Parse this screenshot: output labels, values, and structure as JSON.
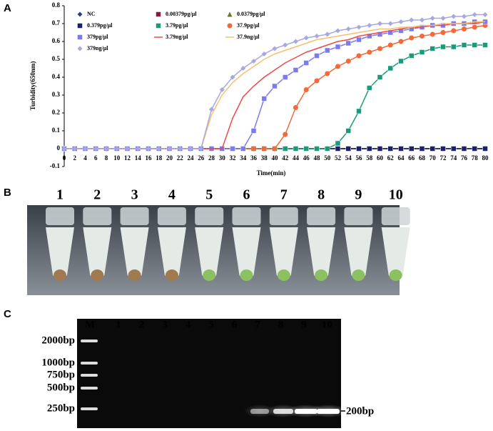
{
  "panels": [
    "A",
    "B",
    "C"
  ],
  "chart_data": {
    "type": "line",
    "x_label": "Time(min)",
    "y_label": "Turbidity(650nm)",
    "x": [
      0,
      2,
      4,
      6,
      8,
      10,
      12,
      14,
      16,
      18,
      20,
      22,
      24,
      26,
      28,
      30,
      32,
      34,
      36,
      38,
      40,
      42,
      44,
      46,
      48,
      50,
      52,
      54,
      56,
      58,
      60,
      62,
      64,
      66,
      68,
      70,
      72,
      74,
      76,
      78,
      80
    ],
    "xlim": [
      0,
      80
    ],
    "xticks": [
      0,
      2,
      4,
      6,
      8,
      10,
      12,
      14,
      16,
      18,
      20,
      22,
      24,
      26,
      28,
      30,
      32,
      34,
      36,
      38,
      40,
      42,
      44,
      46,
      48,
      50,
      52,
      54,
      56,
      58,
      60,
      62,
      64,
      66,
      68,
      70,
      72,
      74,
      76,
      78,
      80
    ],
    "ylim": [
      -0.1,
      0.8
    ],
    "yticks": [
      -0.1,
      0,
      0.1,
      0.2,
      0.3,
      0.4,
      0.5,
      0.6,
      0.7,
      0.8
    ],
    "series": [
      {
        "name": "NC",
        "color": "#2d3e8f",
        "marker": "diamond",
        "values": [
          0,
          0,
          0,
          0,
          0,
          0,
          0,
          0,
          0,
          0,
          0,
          0,
          0,
          0,
          0,
          0,
          0,
          0,
          0,
          0,
          0,
          0,
          0,
          0,
          0,
          0,
          0,
          0,
          0,
          0,
          0,
          0,
          0,
          0,
          0,
          0,
          0,
          0,
          0,
          0,
          0
        ]
      },
      {
        "name": "0.00379pg/µl",
        "color": "#8b1a3a",
        "marker": "square",
        "values": [
          0,
          0,
          0,
          0,
          0,
          0,
          0,
          0,
          0,
          0,
          0,
          0,
          0,
          0,
          0,
          0,
          0,
          0,
          0,
          0,
          0,
          0,
          0,
          0,
          0,
          0,
          0,
          0,
          0,
          0,
          0,
          0,
          0,
          0,
          0,
          0,
          0,
          0,
          0,
          0,
          0
        ]
      },
      {
        "name": "0.0379pg/µl",
        "color": "#6b7a2e",
        "marker": "triangle",
        "values": [
          0,
          0,
          0,
          0,
          0,
          0,
          0,
          0,
          0,
          0,
          0,
          0,
          0,
          0,
          0,
          0,
          0,
          0,
          0,
          0,
          0,
          0,
          0,
          0,
          0,
          0,
          0,
          0,
          0,
          0,
          0,
          0,
          0,
          0,
          0,
          0,
          0,
          0,
          0,
          0,
          0
        ]
      },
      {
        "name": "0.379pg/µl",
        "color": "#1c1f6b",
        "marker": "square",
        "values": [
          0,
          0,
          0,
          0,
          0,
          0,
          0,
          0,
          0,
          0,
          0,
          0,
          0,
          0,
          0,
          0,
          0,
          0,
          0,
          0,
          0,
          0,
          0,
          0,
          0,
          0,
          0,
          0,
          0,
          0,
          0,
          0,
          0,
          0,
          0,
          0,
          0,
          0,
          0,
          0,
          0
        ]
      },
      {
        "name": "3.79pg/µl",
        "color": "#1a9a7a",
        "marker": "square",
        "values": [
          0,
          0,
          0,
          0,
          0,
          0,
          0,
          0,
          0,
          0,
          0,
          0,
          0,
          0,
          0,
          0,
          0,
          0,
          0,
          0,
          0,
          0,
          0,
          0,
          0,
          0,
          0.03,
          0.1,
          0.21,
          0.34,
          0.4,
          0.45,
          0.49,
          0.52,
          0.54,
          0.56,
          0.57,
          0.57,
          0.58,
          0.58,
          0.58
        ]
      },
      {
        "name": "37.9pg/µl",
        "color": "#f26a3a",
        "marker": "circle",
        "values": [
          0,
          0,
          0,
          0,
          0,
          0,
          0,
          0,
          0,
          0,
          0,
          0,
          0,
          0,
          0,
          0,
          0,
          0,
          0,
          0,
          0,
          0.08,
          0.23,
          0.33,
          0.38,
          0.42,
          0.46,
          0.49,
          0.52,
          0.54,
          0.56,
          0.58,
          0.6,
          0.62,
          0.63,
          0.64,
          0.65,
          0.66,
          0.67,
          0.68,
          0.69
        ]
      },
      {
        "name": "379pg/µl",
        "color": "#7b7bf0",
        "marker": "square",
        "values": [
          0,
          0,
          0,
          0,
          0,
          0,
          0,
          0,
          0,
          0,
          0,
          0,
          0,
          0,
          0,
          0,
          0,
          0,
          0.1,
          0.28,
          0.35,
          0.4,
          0.44,
          0.48,
          0.52,
          0.55,
          0.57,
          0.59,
          0.61,
          0.63,
          0.64,
          0.65,
          0.66,
          0.67,
          0.68,
          0.69,
          0.69,
          0.7,
          0.7,
          0.71,
          0.71
        ]
      },
      {
        "name": "3.79ng/µl",
        "color": "#f04848",
        "marker": "none",
        "values": [
          0,
          0,
          0,
          0,
          0,
          0,
          0,
          0,
          0,
          0,
          0,
          0,
          0,
          0,
          0,
          0,
          0.17,
          0.29,
          0.35,
          0.4,
          0.44,
          0.48,
          0.51,
          0.54,
          0.56,
          0.58,
          0.6,
          0.61,
          0.63,
          0.64,
          0.65,
          0.66,
          0.67,
          0.68,
          0.68,
          0.69,
          0.69,
          0.7,
          0.7,
          0.7,
          0.71
        ]
      },
      {
        "name": "37.9ng/µl",
        "color": "#f5c070",
        "marker": "none",
        "values": [
          0,
          0,
          0,
          0,
          0,
          0,
          0,
          0,
          0,
          0,
          0,
          0,
          0,
          0,
          0.19,
          0.3,
          0.37,
          0.42,
          0.46,
          0.5,
          0.53,
          0.55,
          0.57,
          0.59,
          0.61,
          0.62,
          0.63,
          0.64,
          0.65,
          0.66,
          0.67,
          0.67,
          0.68,
          0.68,
          0.69,
          0.69,
          0.7,
          0.7,
          0.7,
          0.71,
          0.71
        ]
      },
      {
        "name": "379ng/µl",
        "color": "#a8a8e0",
        "marker": "diamond",
        "values": [
          0,
          0,
          0,
          0,
          0,
          0,
          0,
          0,
          0,
          0,
          0,
          0,
          0,
          0,
          0.22,
          0.33,
          0.4,
          0.45,
          0.49,
          0.53,
          0.56,
          0.58,
          0.6,
          0.62,
          0.63,
          0.64,
          0.66,
          0.67,
          0.68,
          0.69,
          0.7,
          0.7,
          0.71,
          0.72,
          0.72,
          0.73,
          0.73,
          0.74,
          0.74,
          0.75,
          0.75
        ]
      }
    ]
  },
  "tubes": {
    "labels": [
      "1",
      "2",
      "3",
      "4",
      "5",
      "6",
      "7",
      "8",
      "9",
      "10"
    ]
  },
  "gel": {
    "ladder_name": "M",
    "lane_labels": [
      "1",
      "2",
      "3",
      "4",
      "5",
      "6",
      "7",
      "8",
      "9",
      "10"
    ],
    "ladder_labels": [
      "2000bp",
      "1000bp",
      "750bp",
      "500bp",
      "250bp"
    ],
    "band_label": "200bp"
  }
}
